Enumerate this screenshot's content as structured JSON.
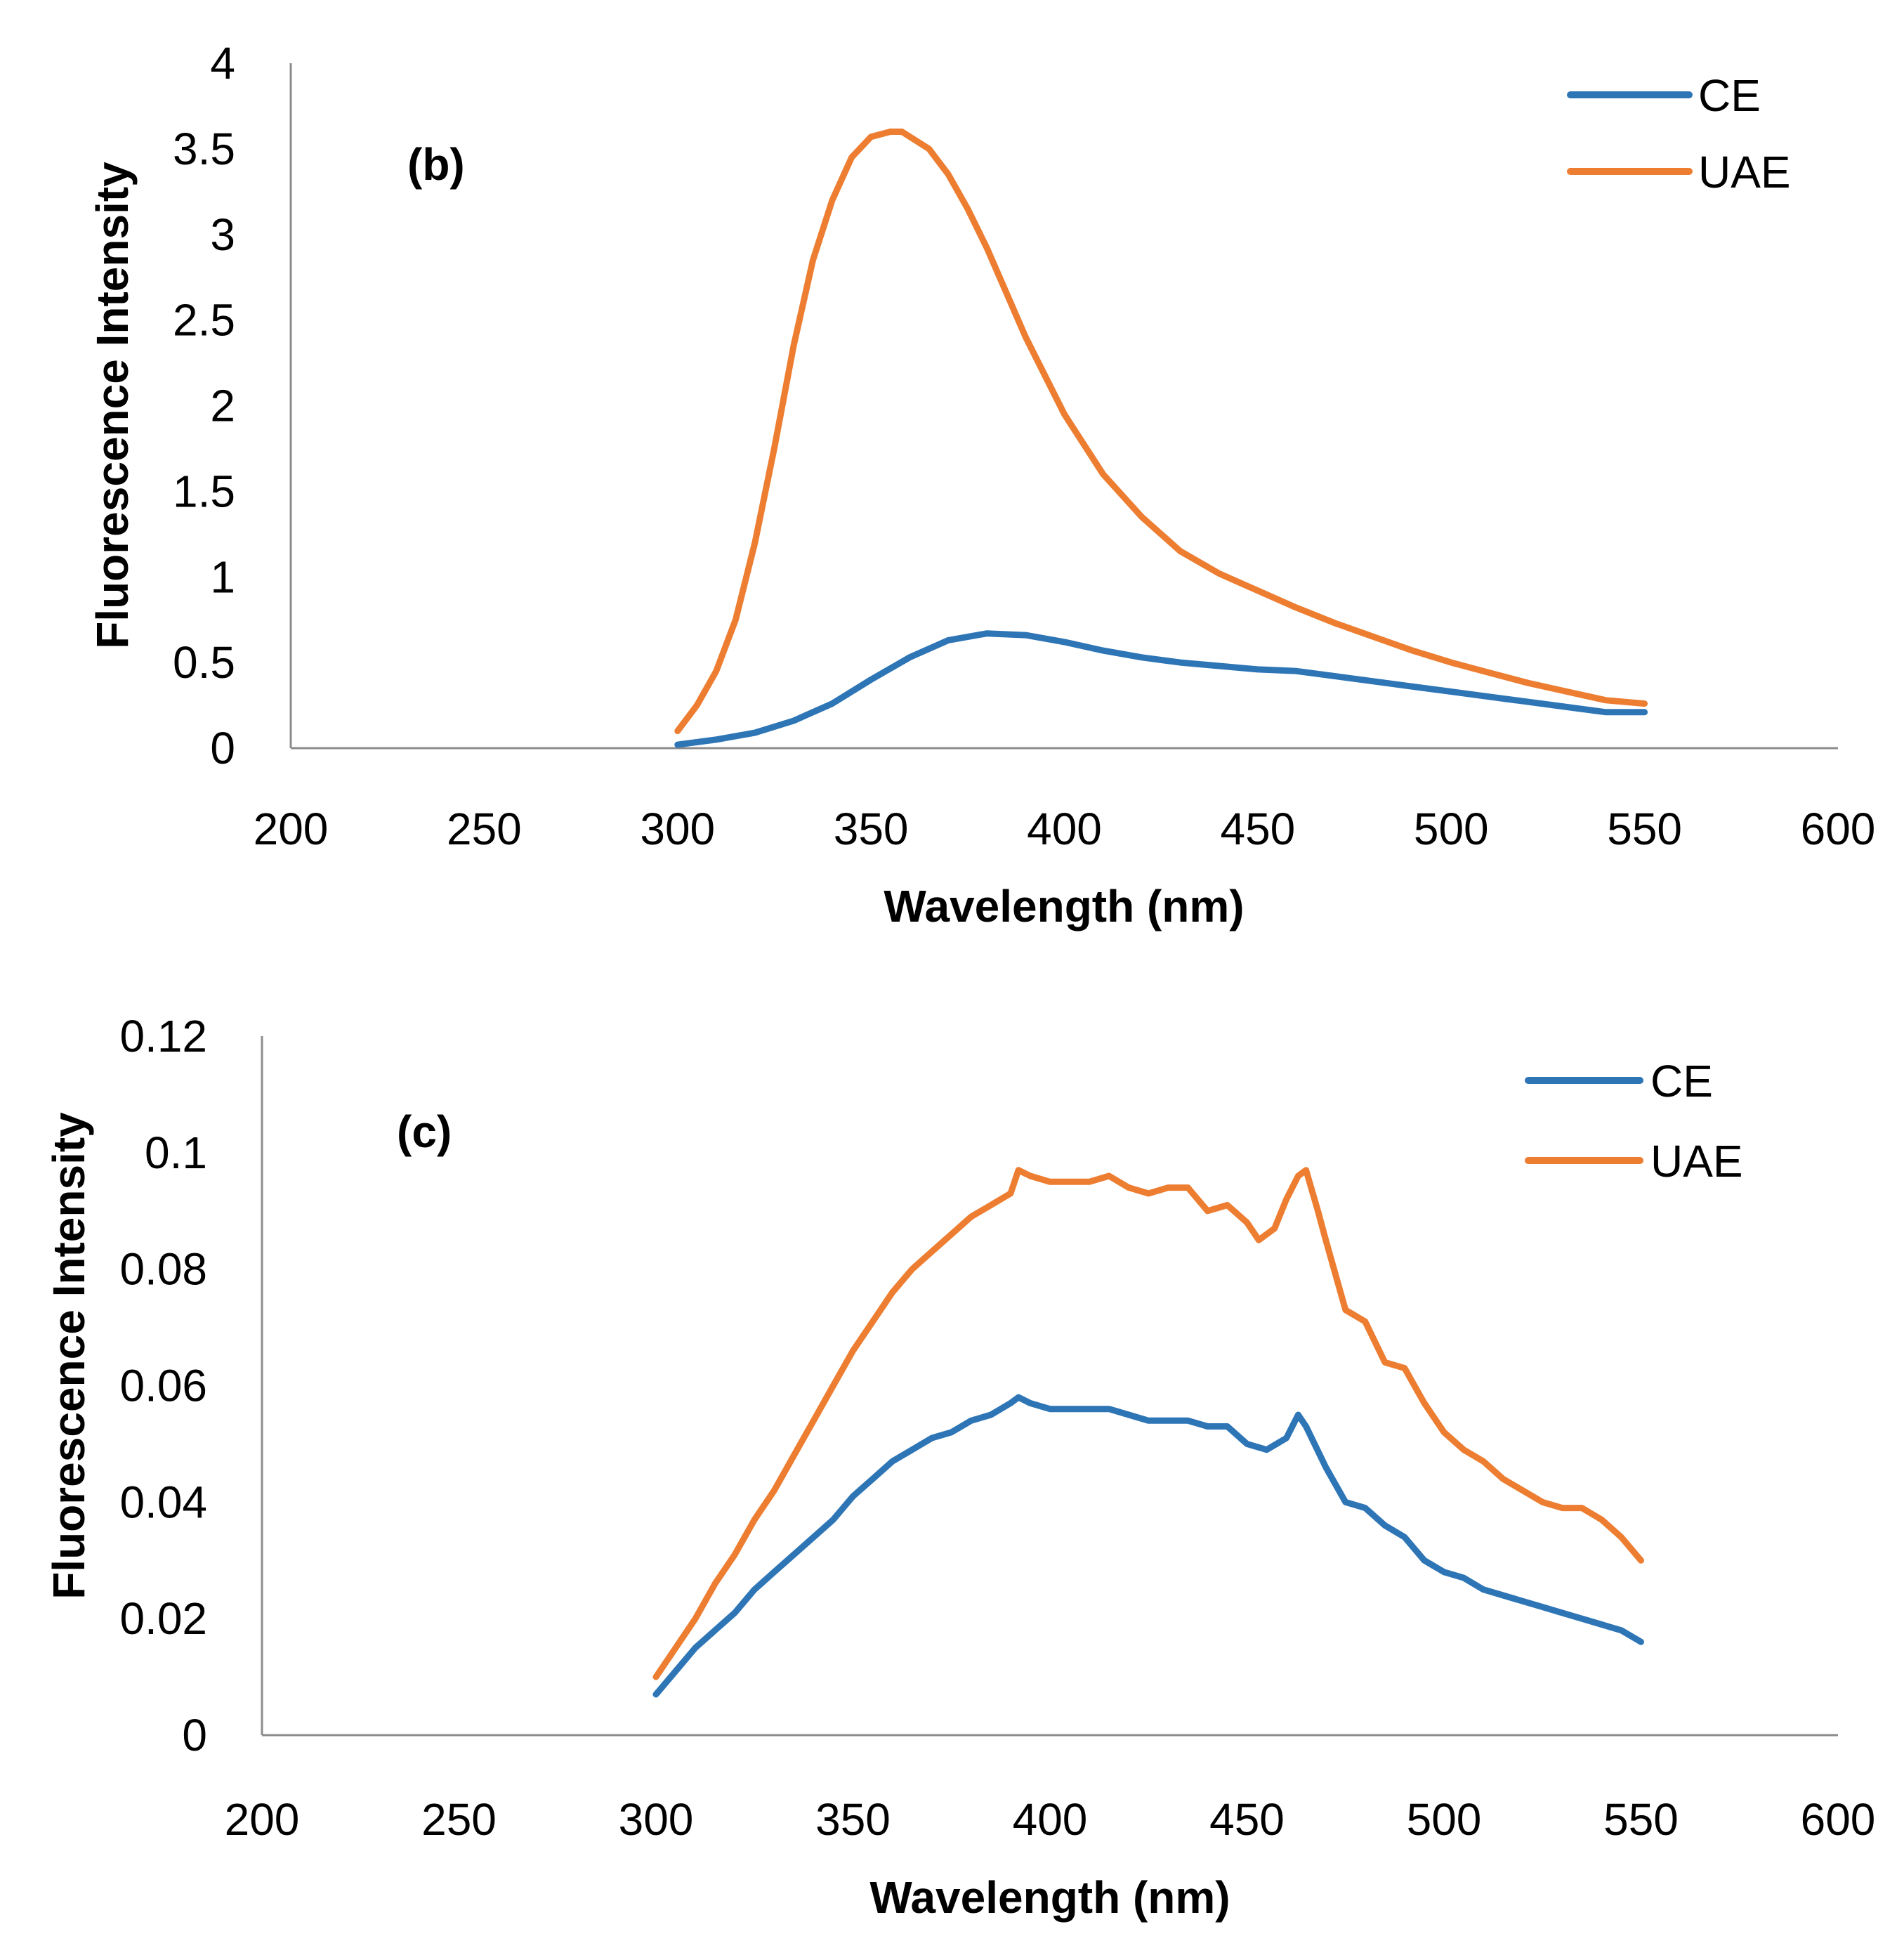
{
  "chart_data": [
    {
      "type": "line",
      "panel_label": "(b)",
      "xlabel": "Wavelength (nm)",
      "ylabel": "Fluorescence Intensity",
      "xlim": [
        200,
        600
      ],
      "ylim": [
        0,
        4
      ],
      "xticks": [
        "200",
        "250",
        "300",
        "350",
        "400",
        "450",
        "500",
        "550",
        "600"
      ],
      "yticks": [
        "0",
        "0.5",
        "1",
        "1.5",
        "2",
        "2.5",
        "3",
        "3.5",
        "4"
      ],
      "legend_position": "top-right",
      "series": [
        {
          "name": "CE",
          "color": "#2e75b6",
          "x": [
            300,
            310,
            320,
            330,
            340,
            350,
            360,
            370,
            380,
            390,
            400,
            410,
            420,
            430,
            440,
            450,
            460,
            470,
            480,
            490,
            500,
            510,
            520,
            530,
            540,
            550
          ],
          "y": [
            0.02,
            0.05,
            0.09,
            0.16,
            0.26,
            0.4,
            0.53,
            0.63,
            0.67,
            0.66,
            0.62,
            0.57,
            0.53,
            0.5,
            0.48,
            0.46,
            0.45,
            0.42,
            0.39,
            0.36,
            0.33,
            0.3,
            0.27,
            0.24,
            0.21,
            0.21
          ]
        },
        {
          "name": "UAE",
          "color": "#ed7d31",
          "x": [
            300,
            305,
            310,
            315,
            320,
            325,
            330,
            335,
            340,
            345,
            350,
            355,
            358,
            365,
            370,
            375,
            380,
            390,
            400,
            410,
            420,
            430,
            440,
            450,
            460,
            470,
            480,
            490,
            500,
            510,
            520,
            530,
            540,
            550
          ],
          "y": [
            0.1,
            0.25,
            0.45,
            0.75,
            1.2,
            1.75,
            2.35,
            2.85,
            3.2,
            3.45,
            3.57,
            3.6,
            3.6,
            3.5,
            3.35,
            3.15,
            2.92,
            2.4,
            1.95,
            1.6,
            1.35,
            1.15,
            1.02,
            0.92,
            0.82,
            0.73,
            0.65,
            0.57,
            0.5,
            0.44,
            0.38,
            0.33,
            0.28,
            0.26
          ]
        }
      ]
    },
    {
      "type": "line",
      "panel_label": "(c)",
      "xlabel": "Wavelength (nm)",
      "ylabel": "Fluorescence Intensity",
      "xlim": [
        200,
        600
      ],
      "ylim": [
        0,
        0.12
      ],
      "xticks": [
        "200",
        "250",
        "300",
        "350",
        "400",
        "450",
        "500",
        "550",
        "600"
      ],
      "yticks": [
        "0",
        "0.02",
        "0.04",
        "0.06",
        "0.08",
        "0.1",
        "0.12"
      ],
      "legend_position": "top-right",
      "series": [
        {
          "name": "CE",
          "color": "#2e75b6",
          "x": [
            300,
            305,
            310,
            315,
            320,
            325,
            330,
            335,
            340,
            345,
            350,
            355,
            360,
            365,
            370,
            375,
            380,
            385,
            390,
            392,
            395,
            400,
            405,
            410,
            415,
            420,
            425,
            430,
            435,
            440,
            445,
            450,
            455,
            460,
            463,
            465,
            470,
            475,
            480,
            485,
            490,
            495,
            500,
            505,
            510,
            515,
            520,
            525,
            530,
            535,
            540,
            545,
            550
          ],
          "y": [
            0.007,
            0.011,
            0.015,
            0.018,
            0.021,
            0.025,
            0.028,
            0.031,
            0.034,
            0.037,
            0.041,
            0.044,
            0.047,
            0.049,
            0.051,
            0.052,
            0.054,
            0.055,
            0.057,
            0.058,
            0.057,
            0.056,
            0.056,
            0.056,
            0.056,
            0.055,
            0.054,
            0.054,
            0.054,
            0.053,
            0.053,
            0.05,
            0.049,
            0.051,
            0.055,
            0.053,
            0.046,
            0.04,
            0.039,
            0.036,
            0.034,
            0.03,
            0.028,
            0.027,
            0.025,
            0.024,
            0.023,
            0.022,
            0.021,
            0.02,
            0.019,
            0.018,
            0.016
          ]
        },
        {
          "name": "UAE",
          "color": "#ed7d31",
          "x": [
            300,
            305,
            310,
            315,
            320,
            325,
            330,
            335,
            340,
            345,
            350,
            355,
            360,
            365,
            370,
            375,
            380,
            385,
            390,
            392,
            395,
            400,
            405,
            410,
            415,
            420,
            425,
            430,
            435,
            440,
            445,
            450,
            453,
            457,
            460,
            463,
            465,
            468,
            470,
            475,
            480,
            485,
            490,
            495,
            500,
            505,
            510,
            515,
            520,
            525,
            530,
            535,
            540,
            545,
            550
          ],
          "y": [
            0.01,
            0.015,
            0.02,
            0.026,
            0.031,
            0.037,
            0.042,
            0.048,
            0.054,
            0.06,
            0.066,
            0.071,
            0.076,
            0.08,
            0.083,
            0.086,
            0.089,
            0.091,
            0.093,
            0.097,
            0.096,
            0.095,
            0.095,
            0.095,
            0.096,
            0.094,
            0.093,
            0.094,
            0.094,
            0.09,
            0.091,
            0.088,
            0.085,
            0.087,
            0.092,
            0.096,
            0.097,
            0.09,
            0.085,
            0.073,
            0.071,
            0.064,
            0.063,
            0.057,
            0.052,
            0.049,
            0.047,
            0.044,
            0.042,
            0.04,
            0.039,
            0.039,
            0.037,
            0.034,
            0.03
          ]
        }
      ]
    }
  ]
}
